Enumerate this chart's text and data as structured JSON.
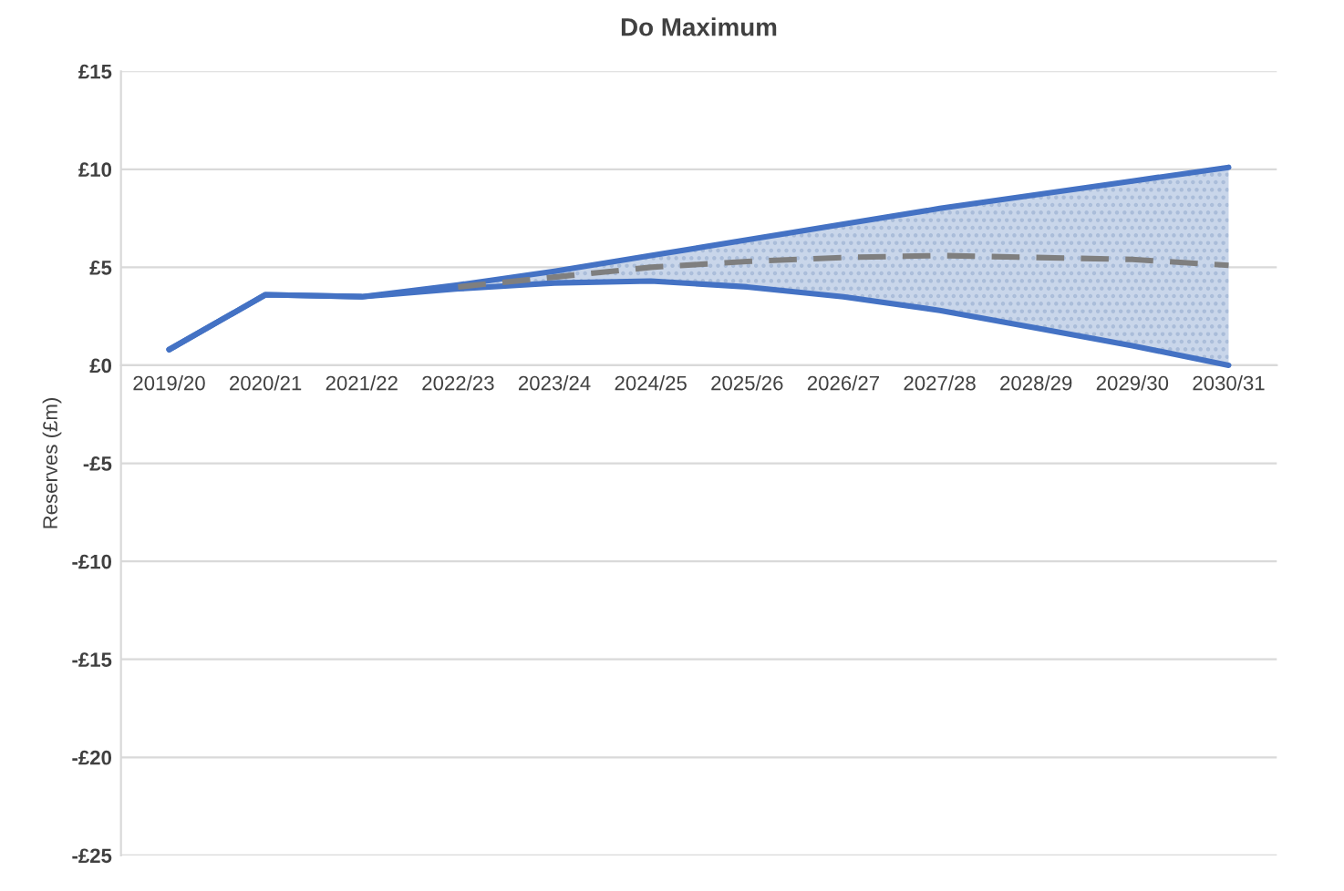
{
  "chart_data": {
    "type": "line",
    "title": "Do Maximum",
    "ylabel": "Reserves (£m)",
    "categories": [
      "2019/20",
      "2020/21",
      "2021/22",
      "2022/23",
      "2023/24",
      "2024/25",
      "2025/26",
      "2026/27",
      "2027/28",
      "2028/29",
      "2029/30",
      "2030/31"
    ],
    "series": [
      {
        "color": "#4472c4",
        "values": [
          0.8,
          3.6,
          3.5,
          4.1,
          4.8,
          5.6,
          6.4,
          7.2,
          8.0,
          8.7,
          9.4,
          10.1
        ]
      },
      {
        "color": "#4472c4",
        "values": [
          0.8,
          3.6,
          3.5,
          3.9,
          4.2,
          4.3,
          4.0,
          3.5,
          2.8,
          1.9,
          1.0,
          0.0
        ]
      },
      {
        "color": "#7f7f7f",
        "line_style": "dashed",
        "values": [
          null,
          null,
          null,
          4.0,
          4.5,
          5.0,
          5.3,
          5.5,
          5.6,
          5.5,
          5.4,
          5.1
        ],
        "lower": [
          null,
          null,
          null,
          3.9,
          4.2,
          4.3,
          4.0,
          3.5,
          2.8,
          1.9,
          1.0,
          0.0
        ],
        "upper": [
          null,
          null,
          null,
          4.1,
          4.8,
          5.6,
          6.4,
          7.2,
          8.0,
          8.7,
          9.4,
          10.1
        ]
      }
    ],
    "ylim": [
      -25,
      15
    ],
    "yticks": [
      {
        "value": -25,
        "label": "-£25"
      },
      {
        "value": -20,
        "label": "-£20"
      },
      {
        "value": -15,
        "label": "-£15"
      },
      {
        "value": -10,
        "label": "-£10"
      },
      {
        "value": -5,
        "label": "-£5"
      },
      {
        "value": 0,
        "label": "£0"
      },
      {
        "value": 5,
        "label": "£5"
      },
      {
        "value": 10,
        "label": "£10"
      },
      {
        "value": 15,
        "label": "£15"
      }
    ],
    "grid": "y",
    "marker": "none",
    "line_style": "solid"
  }
}
